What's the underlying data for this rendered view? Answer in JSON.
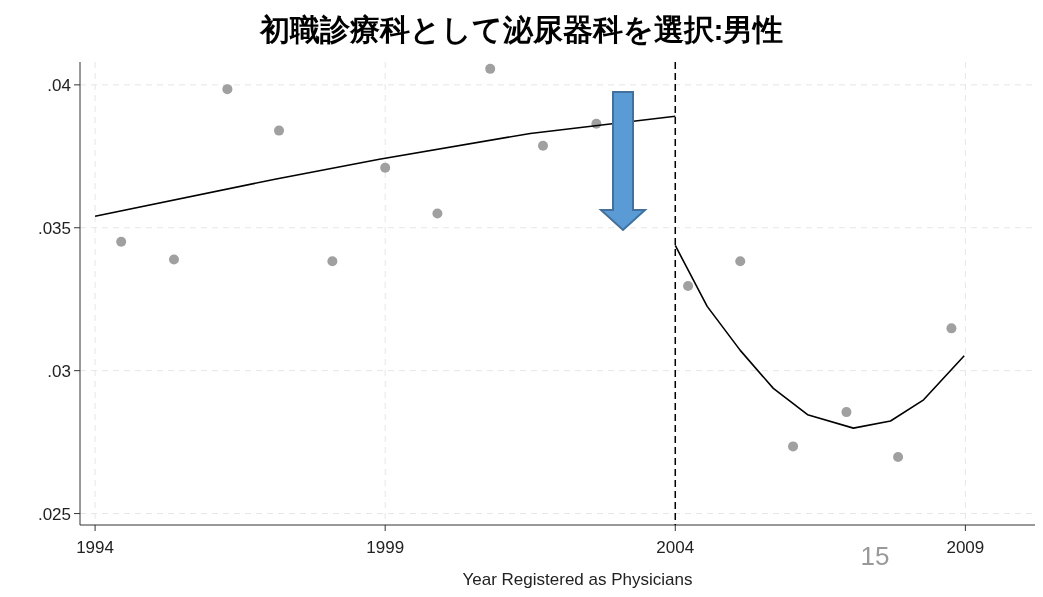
{
  "chart_data": {
    "type": "scatter",
    "title": "初職診療科として泌尿器科を選択:男性",
    "xlabel": "Year Registered as Physicians",
    "xlim": [
      1993.74,
      2010.2
    ],
    "xticks": [
      1994,
      1999,
      2004,
      2009
    ],
    "ylim": [
      0.0246,
      0.0408
    ],
    "yticks": [
      {
        "value": 0.025,
        "label": ".025"
      },
      {
        "value": 0.03,
        "label": ".03"
      },
      {
        "value": 0.035,
        "label": ".035"
      },
      {
        "value": 0.04,
        "label": ".04"
      }
    ],
    "grid": true,
    "ref_lines": [
      {
        "axis": "x",
        "value": 2004,
        "label": null,
        "color": "#000000",
        "line_style": "dashed"
      }
    ],
    "annotations": [
      "15"
    ],
    "series": [
      {
        "marker": "circle",
        "color": "#a0a0a0",
        "x": [
          1994.45,
          1995.36,
          1996.28,
          1997.17,
          1998.09,
          1999.0,
          1999.9,
          2000.81,
          2001.72,
          2002.64,
          2004.22,
          2005.12,
          2006.03,
          2006.95,
          2007.84,
          2008.76
        ],
        "values": [
          0.03451,
          0.03389,
          0.03985,
          0.0384,
          0.03383,
          0.0371,
          0.0355,
          0.04056,
          0.03787,
          0.03864,
          0.03296,
          0.03383,
          0.02735,
          0.02855,
          0.02698,
          0.03148
        ]
      },
      {
        "type": "line",
        "color": "#000000",
        "line_style": "solid",
        "x": [
          1994,
          1997.1,
          1998.9,
          2001.5,
          2004
        ],
        "values": [
          0.0354,
          0.0367,
          0.0374,
          0.0383,
          0.0389
        ]
      },
      {
        "type": "line",
        "color": "#000000",
        "line_style": "solid",
        "x": [
          2004,
          2004.55,
          2005.12,
          2005.69,
          2006.28,
          2007.07,
          2007.71,
          2008.28,
          2008.98
        ],
        "values": [
          0.03438,
          0.03225,
          0.03071,
          0.02938,
          0.02846,
          0.02799,
          0.02824,
          0.02898,
          0.03052
        ]
      }
    ]
  }
}
